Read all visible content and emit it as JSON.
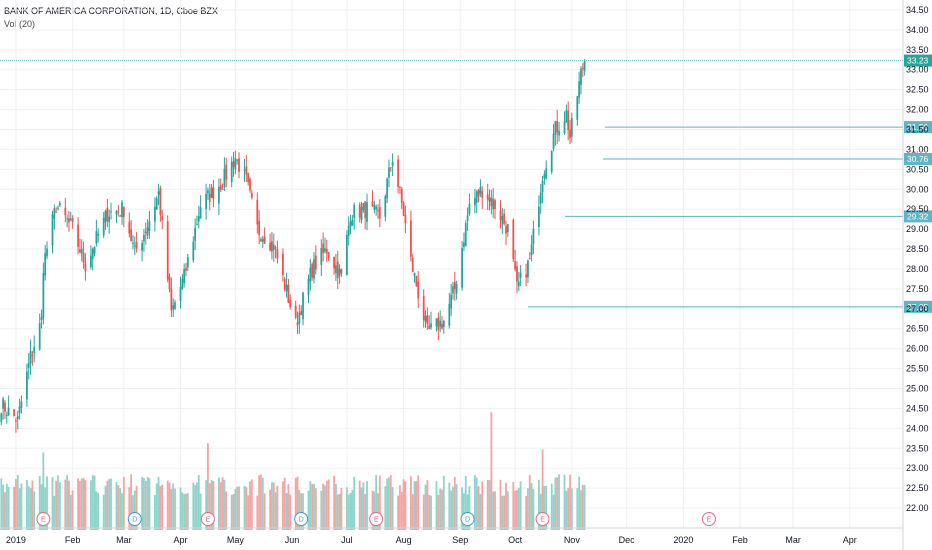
{
  "legend": {
    "title": "BANK OF AMERICA CORPORATION, 1D, Cboe BZX",
    "volume_label": "Vol (20)"
  },
  "colors": {
    "up": "#26a69a",
    "down": "#ef5350",
    "vol_up": "#8fd3ca",
    "vol_down": "#f4a4a2",
    "level_line": "#5fb5c4",
    "badge": "#5fb5c4",
    "price_badge": "#26a69a",
    "grid": "#eef0f3",
    "event_dividend": "#3d9ed6",
    "event_earnings": "#e46a84"
  },
  "chart_data": {
    "type": "candlestick",
    "title": "BANK OF AMERICA CORPORATION, 1D, Cboe BZX",
    "ylim": [
      21.6,
      34.75
    ],
    "y_ticks": [
      "22.00",
      "22.50",
      "23.00",
      "23.50",
      "24.00",
      "24.50",
      "25.00",
      "25.50",
      "26.00",
      "26.50",
      "27.00",
      "27.50",
      "28.00",
      "28.50",
      "29.00",
      "29.50",
      "30.00",
      "30.50",
      "31.00",
      "31.50",
      "32.00",
      "32.50",
      "33.00",
      "33.50",
      "34.00",
      "34.50"
    ],
    "x_labels": [
      "2019",
      "Feb",
      "Mar",
      "Apr",
      "May",
      "Jun",
      "Jul",
      "Aug",
      "Sep",
      "Oct",
      "Nov",
      "Dec",
      "2020",
      "Feb",
      "Mar",
      "Apr"
    ],
    "grid": true,
    "current_price": 33.23,
    "levels": [
      31.56,
      30.76,
      29.32,
      27.05
    ],
    "level_labels": [
      "31.56",
      "30.76",
      "29.32",
      "27.05"
    ],
    "current_price_label": "33.23",
    "waypoints": [
      {
        "date": "2018-12-24",
        "close": 24.6
      },
      {
        "date": "2019-01-02",
        "close": 24.2
      },
      {
        "date": "2019-01-09",
        "close": 25.8
      },
      {
        "date": "2019-01-15",
        "close": 26.7
      },
      {
        "date": "2019-01-16",
        "close": 28.1
      },
      {
        "date": "2019-01-23",
        "close": 29.6
      },
      {
        "date": "2019-02-01",
        "close": 29.0
      },
      {
        "date": "2019-02-08",
        "close": 28.1
      },
      {
        "date": "2019-02-20",
        "close": 29.4
      },
      {
        "date": "2019-03-01",
        "close": 29.5
      },
      {
        "date": "2019-03-07",
        "close": 28.4
      },
      {
        "date": "2019-03-14",
        "close": 29.1
      },
      {
        "date": "2019-03-20",
        "close": 29.9
      },
      {
        "date": "2019-03-27",
        "close": 26.9
      },
      {
        "date": "2019-04-03",
        "close": 27.8
      },
      {
        "date": "2019-04-12",
        "close": 29.6
      },
      {
        "date": "2019-04-24",
        "close": 30.2
      },
      {
        "date": "2019-05-01",
        "close": 30.8
      },
      {
        "date": "2019-05-07",
        "close": 30.2
      },
      {
        "date": "2019-05-13",
        "close": 29.0
      },
      {
        "date": "2019-05-22",
        "close": 28.6
      },
      {
        "date": "2019-06-03",
        "close": 26.6
      },
      {
        "date": "2019-06-12",
        "close": 28.0
      },
      {
        "date": "2019-06-20",
        "close": 28.5
      },
      {
        "date": "2019-06-28",
        "close": 27.8
      },
      {
        "date": "2019-07-03",
        "close": 29.4
      },
      {
        "date": "2019-07-12",
        "close": 29.5
      },
      {
        "date": "2019-07-19",
        "close": 29.3
      },
      {
        "date": "2019-07-26",
        "close": 30.8
      },
      {
        "date": "2019-08-01",
        "close": 29.4
      },
      {
        "date": "2019-08-05",
        "close": 28.2
      },
      {
        "date": "2019-08-14",
        "close": 26.4
      },
      {
        "date": "2019-08-23",
        "close": 26.7
      },
      {
        "date": "2019-08-29",
        "close": 27.5
      },
      {
        "date": "2019-09-06",
        "close": 29.6
      },
      {
        "date": "2019-09-13",
        "close": 30.0
      },
      {
        "date": "2019-09-20",
        "close": 29.6
      },
      {
        "date": "2019-09-27",
        "close": 29.0
      },
      {
        "date": "2019-10-02",
        "close": 27.5
      },
      {
        "date": "2019-10-09",
        "close": 28.2
      },
      {
        "date": "2019-10-16",
        "close": 30.4
      },
      {
        "date": "2019-10-23",
        "close": 31.5
      },
      {
        "date": "2019-10-29",
        "close": 31.9
      },
      {
        "date": "2019-10-31",
        "close": 31.3
      },
      {
        "date": "2019-11-06",
        "close": 32.9
      },
      {
        "date": "2019-11-08",
        "close": 33.23
      }
    ],
    "volume_spikes": [
      {
        "date": "2019-01-16",
        "value": 1.25,
        "dir": "up"
      },
      {
        "date": "2019-04-16",
        "value": 1.4,
        "dir": "down"
      },
      {
        "date": "2019-09-18",
        "value": 1.9,
        "dir": "down"
      },
      {
        "date": "2019-10-16",
        "value": 1.3,
        "dir": "down"
      }
    ],
    "events": [
      {
        "date": "2019-01-16",
        "label": "E",
        "kind": "earnings"
      },
      {
        "date": "2019-03-07",
        "label": "D",
        "kind": "dividend"
      },
      {
        "date": "2019-04-16",
        "label": "E",
        "kind": "earnings"
      },
      {
        "date": "2019-06-06",
        "label": "D",
        "kind": "dividend"
      },
      {
        "date": "2019-07-17",
        "label": "E",
        "kind": "earnings"
      },
      {
        "date": "2019-09-05",
        "label": "D",
        "kind": "dividend"
      },
      {
        "date": "2019-10-16",
        "label": "E",
        "kind": "earnings"
      },
      {
        "date": "2020-01-15",
        "label": "E",
        "kind": "earnings"
      }
    ]
  }
}
